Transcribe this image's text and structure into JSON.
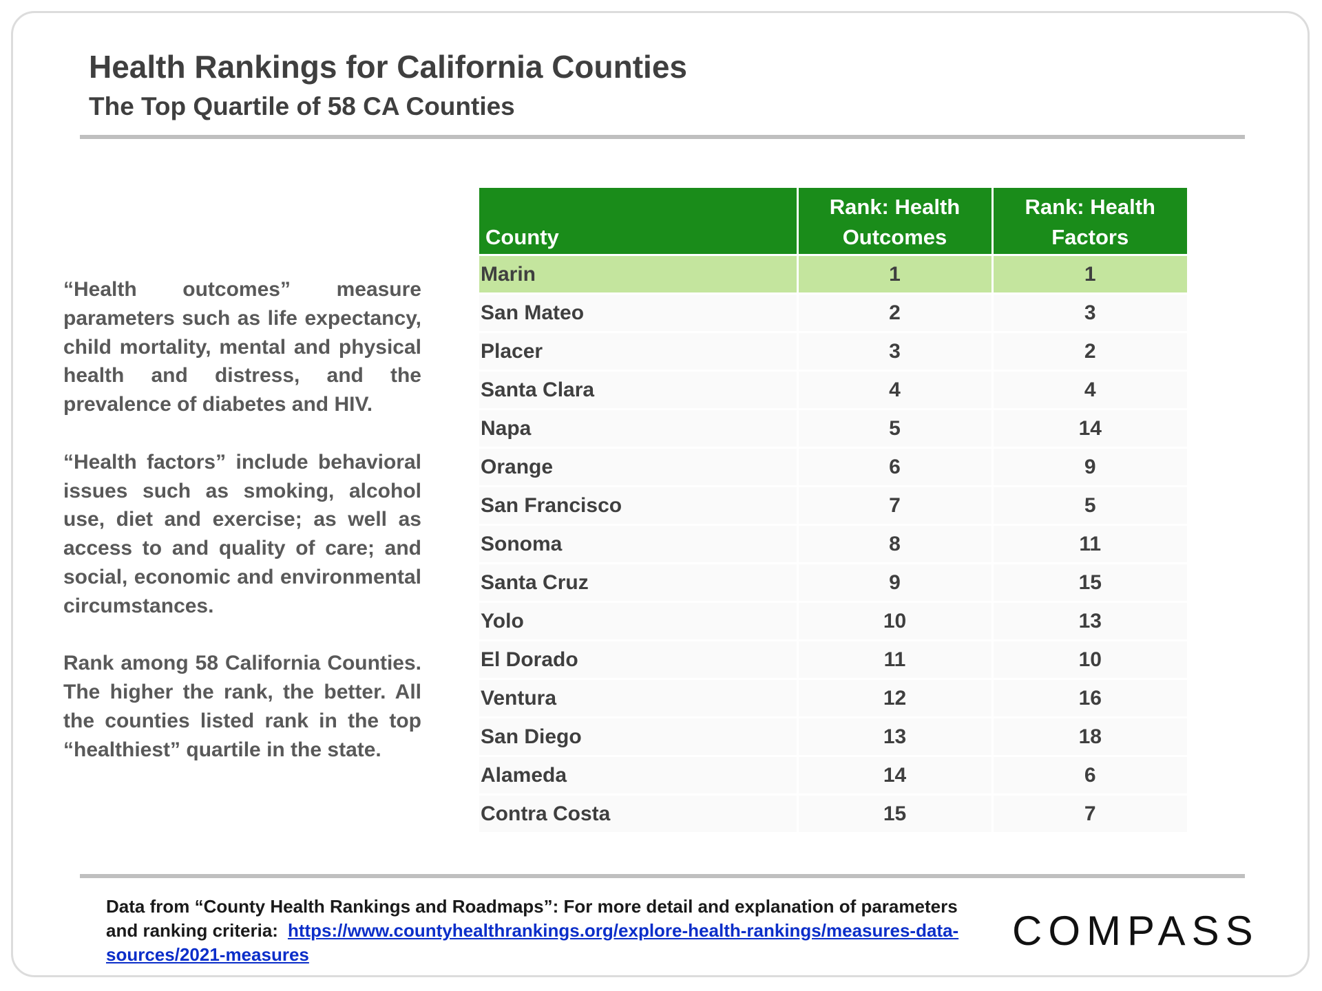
{
  "header": {
    "title": "Health Rankings for California Counties",
    "subtitle": "The Top Quartile of 58 CA Counties"
  },
  "description": {
    "paragraphs": [
      "“Health outcomes” measure parameters such as life expectancy, child mortality, mental and physical health and distress, and the prevalence of diabetes and HIV.",
      "“Health factors” include behavioral issues such as smoking, alcohol use, diet and exercise; as well as access to and quality of care; and social, economic and environmental circumstances.",
      "Rank among 58 California Counties. The higher the rank, the better. All the counties listed rank in the top “healthiest” quartile in the state."
    ]
  },
  "table": {
    "headers": {
      "county": "County",
      "outcomes_line1": "Rank: Health",
      "outcomes_line2": "Outcomes",
      "factors_line1": "Rank: Health",
      "factors_line2": "Factors"
    },
    "rows": [
      {
        "county": "Marin",
        "outcomes": "1",
        "factors": "1"
      },
      {
        "county": "San Mateo",
        "outcomes": "2",
        "factors": "3"
      },
      {
        "county": "Placer",
        "outcomes": "3",
        "factors": "2"
      },
      {
        "county": "Santa Clara",
        "outcomes": "4",
        "factors": "4"
      },
      {
        "county": "Napa",
        "outcomes": "5",
        "factors": "14"
      },
      {
        "county": "Orange",
        "outcomes": "6",
        "factors": "9"
      },
      {
        "county": "San Francisco",
        "outcomes": "7",
        "factors": "5"
      },
      {
        "county": "Sonoma",
        "outcomes": "8",
        "factors": "11"
      },
      {
        "county": "Santa Cruz",
        "outcomes": "9",
        "factors": "15"
      },
      {
        "county": "Yolo",
        "outcomes": "10",
        "factors": "13"
      },
      {
        "county": "El Dorado",
        "outcomes": "11",
        "factors": "10"
      },
      {
        "county": "Ventura",
        "outcomes": "12",
        "factors": "16"
      },
      {
        "county": "San Diego",
        "outcomes": "13",
        "factors": "18"
      },
      {
        "county": "Alameda",
        "outcomes": "14",
        "factors": "6"
      },
      {
        "county": "Contra Costa",
        "outcomes": "15",
        "factors": "7"
      }
    ]
  },
  "footer": {
    "source_text_line1": "Data from “County Health Rankings and Roadmaps”: For more detail and explanation of parameters",
    "source_text_line2": "and ranking criteria:",
    "link_text": "https://www.countyhealthrankings.org/explore-health-rankings/measures-data-sources/2021-measures",
    "logo": "COMPASS"
  },
  "colors": {
    "header_green": "#1a8c1a",
    "highlight_green": "#c4e59e",
    "link_blue": "#0b2ec9"
  }
}
